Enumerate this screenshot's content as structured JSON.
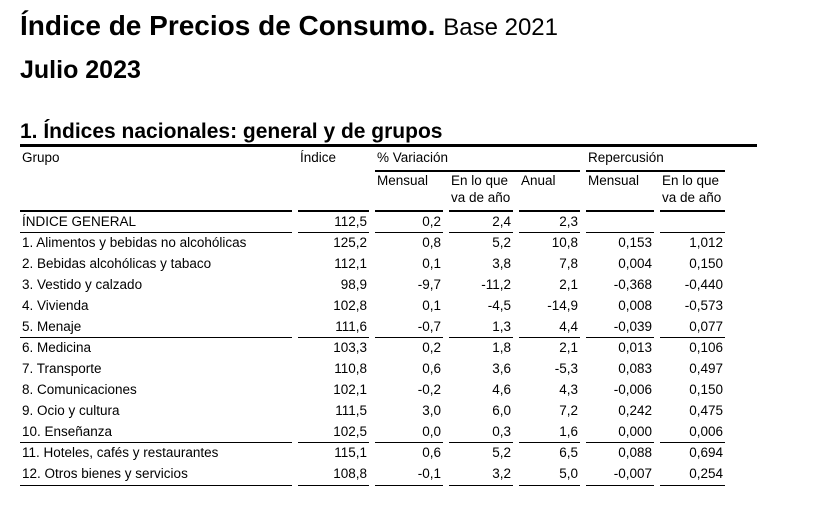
{
  "header": {
    "title": "Índice de Precios de Consumo.",
    "base": "Base 2021",
    "period": "Julio 2023",
    "section": "1. Índices nacionales: general y de grupos"
  },
  "table": {
    "col_grupo": "Grupo",
    "col_indice": "Índice",
    "group_variacion": "% Variación",
    "group_repercusion": "Repercusión",
    "sub_mensual": "Mensual",
    "sub_va_ano": "En lo que va de año",
    "sub_anual": "Anual",
    "sub_rep_mensual": "Mensual",
    "sub_rep_va_ano": "En lo que va de año",
    "rows": [
      {
        "grupo": "ÍNDICE GENERAL",
        "indice": "112,5",
        "mensual": "0,2",
        "va_ano": "2,4",
        "anual": "2,3",
        "rep_mensual": "",
        "rep_va_ano": ""
      },
      {
        "grupo": "1. Alimentos y bebidas no alcohólicas",
        "indice": "125,2",
        "mensual": "0,8",
        "va_ano": "5,2",
        "anual": "10,8",
        "rep_mensual": "0,153",
        "rep_va_ano": "1,012"
      },
      {
        "grupo": "2. Bebidas alcohólicas y tabaco",
        "indice": "112,1",
        "mensual": "0,1",
        "va_ano": "3,8",
        "anual": "7,8",
        "rep_mensual": "0,004",
        "rep_va_ano": "0,150"
      },
      {
        "grupo": "3. Vestido y calzado",
        "indice": "98,9",
        "mensual": "-9,7",
        "va_ano": "-11,2",
        "anual": "2,1",
        "rep_mensual": "-0,368",
        "rep_va_ano": "-0,440"
      },
      {
        "grupo": "4. Vivienda",
        "indice": "102,8",
        "mensual": "0,1",
        "va_ano": "-4,5",
        "anual": "-14,9",
        "rep_mensual": "0,008",
        "rep_va_ano": "-0,573"
      },
      {
        "grupo": "5. Menaje",
        "indice": "111,6",
        "mensual": "-0,7",
        "va_ano": "1,3",
        "anual": "4,4",
        "rep_mensual": "-0,039",
        "rep_va_ano": "0,077"
      },
      {
        "grupo": "6. Medicina",
        "indice": "103,3",
        "mensual": "0,2",
        "va_ano": "1,8",
        "anual": "2,1",
        "rep_mensual": "0,013",
        "rep_va_ano": "0,106"
      },
      {
        "grupo": "7. Transporte",
        "indice": "110,8",
        "mensual": "0,6",
        "va_ano": "3,6",
        "anual": "-5,3",
        "rep_mensual": "0,083",
        "rep_va_ano": "0,497"
      },
      {
        "grupo": "8. Comunicaciones",
        "indice": "102,1",
        "mensual": "-0,2",
        "va_ano": "4,6",
        "anual": "4,3",
        "rep_mensual": "-0,006",
        "rep_va_ano": "0,150"
      },
      {
        "grupo": "9. Ocio y cultura",
        "indice": "111,5",
        "mensual": "3,0",
        "va_ano": "6,0",
        "anual": "7,2",
        "rep_mensual": "0,242",
        "rep_va_ano": "0,475"
      },
      {
        "grupo": "10. Enseñanza",
        "indice": "102,5",
        "mensual": "0,0",
        "va_ano": "0,3",
        "anual": "1,6",
        "rep_mensual": "0,000",
        "rep_va_ano": "0,006"
      },
      {
        "grupo": "11. Hoteles, cafés y restaurantes",
        "indice": "115,1",
        "mensual": "0,6",
        "va_ano": "5,2",
        "anual": "6,5",
        "rep_mensual": "0,088",
        "rep_va_ano": "0,694"
      },
      {
        "grupo": "12. Otros bienes y servicios",
        "indice": "108,8",
        "mensual": "-0,1",
        "va_ano": "3,2",
        "anual": "5,0",
        "rep_mensual": "-0,007",
        "rep_va_ano": "0,254"
      }
    ]
  }
}
